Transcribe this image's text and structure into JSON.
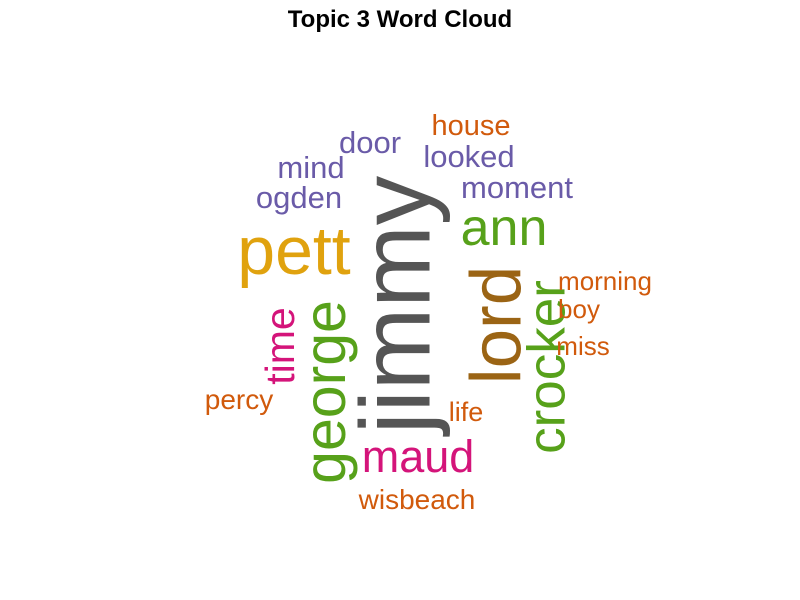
{
  "chart_data": {
    "type": "wordcloud",
    "title": "Topic 3 Word Cloud",
    "words": [
      {
        "text": "jimmy",
        "weight": 10,
        "color": "#555555",
        "orientation": "vertical"
      },
      {
        "text": "lord",
        "weight": 7.2,
        "color": "#9b6414",
        "orientation": "vertical"
      },
      {
        "text": "george",
        "weight": 6.6,
        "color": "#57a11a",
        "orientation": "vertical"
      },
      {
        "text": "pett",
        "weight": 6.4,
        "color": "#e0a20e",
        "orientation": "horizontal"
      },
      {
        "text": "crocker",
        "weight": 5.8,
        "color": "#57a11a",
        "orientation": "vertical"
      },
      {
        "text": "ann",
        "weight": 5.4,
        "color": "#57a11a",
        "orientation": "horizontal"
      },
      {
        "text": "maud",
        "weight": 4.5,
        "color": "#d4147a",
        "orientation": "horizontal"
      },
      {
        "text": "time",
        "weight": 4.4,
        "color": "#d4147a",
        "orientation": "vertical"
      },
      {
        "text": "moment",
        "weight": 3.1,
        "color": "#6a5ba8",
        "orientation": "horizontal"
      },
      {
        "text": "ogden",
        "weight": 3.1,
        "color": "#6a5ba8",
        "orientation": "horizontal"
      },
      {
        "text": "door",
        "weight": 3.1,
        "color": "#6a5ba8",
        "orientation": "horizontal"
      },
      {
        "text": "mind",
        "weight": 3.1,
        "color": "#6a5ba8",
        "orientation": "horizontal"
      },
      {
        "text": "looked",
        "weight": 3.1,
        "color": "#6a5ba8",
        "orientation": "horizontal"
      },
      {
        "text": "house",
        "weight": 2.9,
        "color": "#d15a0c",
        "orientation": "horizontal"
      },
      {
        "text": "wisbeach",
        "weight": 2.9,
        "color": "#d15a0c",
        "orientation": "horizontal"
      },
      {
        "text": "percy",
        "weight": 2.8,
        "color": "#d15a0c",
        "orientation": "horizontal"
      },
      {
        "text": "life",
        "weight": 2.8,
        "color": "#d15a0c",
        "orientation": "horizontal"
      },
      {
        "text": "morning",
        "weight": 2.7,
        "color": "#d15a0c",
        "orientation": "horizontal"
      },
      {
        "text": "boy",
        "weight": 2.7,
        "color": "#d15a0c",
        "orientation": "horizontal"
      },
      {
        "text": "miss",
        "weight": 2.7,
        "color": "#d15a0c",
        "orientation": "horizontal"
      }
    ]
  }
}
